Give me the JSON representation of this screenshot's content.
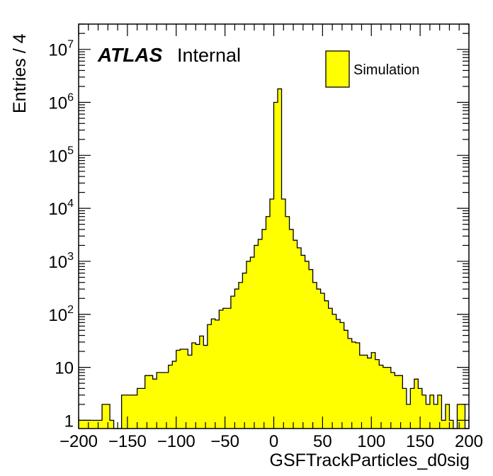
{
  "chart_data": {
    "type": "histogram",
    "xlabel": "GSFTrackParticles_d0sig",
    "ylabel": "Entries / 4",
    "xlim": [
      -200,
      200
    ],
    "ylog": true,
    "ylim": [
      0.7,
      30000000
    ],
    "bin_width": 4,
    "x_ticks": [
      {
        "v": -200,
        "label": "−200"
      },
      {
        "v": -150,
        "label": "−150"
      },
      {
        "v": -100,
        "label": "−100"
      },
      {
        "v": -50,
        "label": "−50"
      },
      {
        "v": 0,
        "label": "0"
      },
      {
        "v": 50,
        "label": "50"
      },
      {
        "v": 100,
        "label": "100"
      },
      {
        "v": 150,
        "label": "150"
      },
      {
        "v": 200,
        "label": "200"
      }
    ],
    "y_ticks": [
      {
        "v": 1,
        "base": "1",
        "exp": ""
      },
      {
        "v": 10,
        "base": "10",
        "exp": ""
      },
      {
        "v": 100,
        "base": "10",
        "exp": "2"
      },
      {
        "v": 1000,
        "base": "10",
        "exp": "3"
      },
      {
        "v": 10000,
        "base": "10",
        "exp": "4"
      },
      {
        "v": 100000,
        "base": "10",
        "exp": "5"
      },
      {
        "v": 1000000,
        "base": "10",
        "exp": "6"
      },
      {
        "v": 10000000,
        "base": "10",
        "exp": "7"
      }
    ],
    "atlas_label": "ATLAS",
    "status_label": "Internal",
    "legend": [
      {
        "label": "Simulation",
        "color": "#ffff00"
      }
    ],
    "fill_color": "#ffff00",
    "line_color": "#000000",
    "bins": [
      {
        "lo": -200,
        "v": 1
      },
      {
        "lo": -196,
        "v": 1
      },
      {
        "lo": -192,
        "v": 1
      },
      {
        "lo": -188,
        "v": 1
      },
      {
        "lo": -184,
        "v": 1
      },
      {
        "lo": -180,
        "v": 1
      },
      {
        "lo": -176,
        "v": 2
      },
      {
        "lo": -172,
        "v": 2
      },
      {
        "lo": -168,
        "v": 1
      },
      {
        "lo": -164,
        "v": 0
      },
      {
        "lo": -160,
        "v": 0
      },
      {
        "lo": -156,
        "v": 3
      },
      {
        "lo": -152,
        "v": 3
      },
      {
        "lo": -148,
        "v": 3
      },
      {
        "lo": -144,
        "v": 3
      },
      {
        "lo": -140,
        "v": 4
      },
      {
        "lo": -136,
        "v": 4
      },
      {
        "lo": -132,
        "v": 7
      },
      {
        "lo": -128,
        "v": 7
      },
      {
        "lo": -124,
        "v": 6
      },
      {
        "lo": -120,
        "v": 8
      },
      {
        "lo": -116,
        "v": 8
      },
      {
        "lo": -112,
        "v": 8
      },
      {
        "lo": -108,
        "v": 11
      },
      {
        "lo": -104,
        "v": 13
      },
      {
        "lo": -100,
        "v": 21
      },
      {
        "lo": -96,
        "v": 22
      },
      {
        "lo": -92,
        "v": 22
      },
      {
        "lo": -88,
        "v": 17
      },
      {
        "lo": -84,
        "v": 29
      },
      {
        "lo": -80,
        "v": 27
      },
      {
        "lo": -76,
        "v": 39
      },
      {
        "lo": -72,
        "v": 26
      },
      {
        "lo": -68,
        "v": 64
      },
      {
        "lo": -64,
        "v": 82
      },
      {
        "lo": -60,
        "v": 78
      },
      {
        "lo": -56,
        "v": 120
      },
      {
        "lo": -52,
        "v": 130
      },
      {
        "lo": -48,
        "v": 130
      },
      {
        "lo": -44,
        "v": 220
      },
      {
        "lo": -40,
        "v": 300
      },
      {
        "lo": -36,
        "v": 400
      },
      {
        "lo": -32,
        "v": 600
      },
      {
        "lo": -28,
        "v": 1000
      },
      {
        "lo": -24,
        "v": 1200
      },
      {
        "lo": -20,
        "v": 2000
      },
      {
        "lo": -16,
        "v": 2600
      },
      {
        "lo": -12,
        "v": 4000
      },
      {
        "lo": -8,
        "v": 7000
      },
      {
        "lo": -4,
        "v": 15000
      },
      {
        "lo": 0,
        "v": 1000000
      },
      {
        "lo": 4,
        "v": 1800000
      },
      {
        "lo": 8,
        "v": 15000
      },
      {
        "lo": 12,
        "v": 7000
      },
      {
        "lo": 16,
        "v": 4000
      },
      {
        "lo": 20,
        "v": 2500
      },
      {
        "lo": 24,
        "v": 1800
      },
      {
        "lo": 28,
        "v": 1300
      },
      {
        "lo": 32,
        "v": 1000
      },
      {
        "lo": 36,
        "v": 700
      },
      {
        "lo": 40,
        "v": 400
      },
      {
        "lo": 44,
        "v": 300
      },
      {
        "lo": 48,
        "v": 250
      },
      {
        "lo": 52,
        "v": 180
      },
      {
        "lo": 56,
        "v": 130
      },
      {
        "lo": 60,
        "v": 100
      },
      {
        "lo": 64,
        "v": 80
      },
      {
        "lo": 68,
        "v": 70
      },
      {
        "lo": 72,
        "v": 50
      },
      {
        "lo": 76,
        "v": 35
      },
      {
        "lo": 80,
        "v": 30
      },
      {
        "lo": 84,
        "v": 29
      },
      {
        "lo": 88,
        "v": 17
      },
      {
        "lo": 92,
        "v": 17
      },
      {
        "lo": 96,
        "v": 15
      },
      {
        "lo": 100,
        "v": 19
      },
      {
        "lo": 104,
        "v": 14
      },
      {
        "lo": 108,
        "v": 11
      },
      {
        "lo": 112,
        "v": 10
      },
      {
        "lo": 116,
        "v": 10
      },
      {
        "lo": 120,
        "v": 8
      },
      {
        "lo": 124,
        "v": 7
      },
      {
        "lo": 128,
        "v": 7
      },
      {
        "lo": 132,
        "v": 4
      },
      {
        "lo": 136,
        "v": 2
      },
      {
        "lo": 140,
        "v": 4
      },
      {
        "lo": 144,
        "v": 6
      },
      {
        "lo": 148,
        "v": 4
      },
      {
        "lo": 152,
        "v": 3
      },
      {
        "lo": 156,
        "v": 2
      },
      {
        "lo": 160,
        "v": 3
      },
      {
        "lo": 164,
        "v": 2
      },
      {
        "lo": 168,
        "v": 3
      },
      {
        "lo": 172,
        "v": 1
      },
      {
        "lo": 176,
        "v": 2
      },
      {
        "lo": 180,
        "v": 1
      },
      {
        "lo": 184,
        "v": 0
      },
      {
        "lo": 188,
        "v": 2
      },
      {
        "lo": 192,
        "v": 2
      },
      {
        "lo": 196,
        "v": 0
      }
    ]
  }
}
